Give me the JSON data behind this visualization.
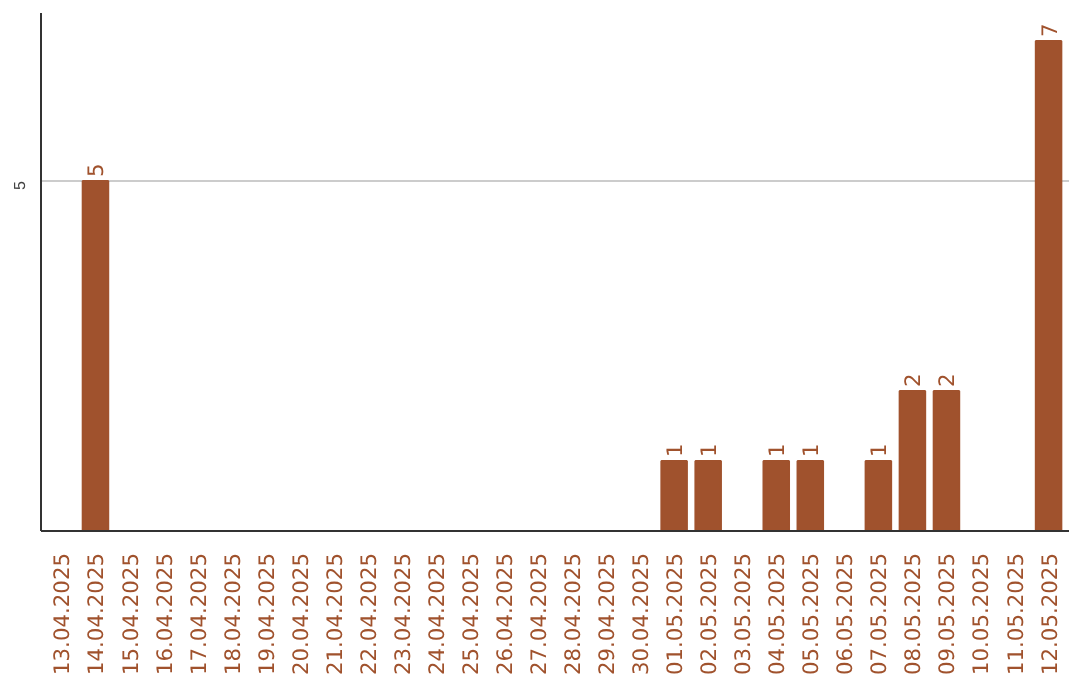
{
  "chart_data": {
    "type": "bar",
    "categories": [
      "13.04.2025",
      "14.04.2025",
      "15.04.2025",
      "16.04.2025",
      "17.04.2025",
      "18.04.2025",
      "19.04.2025",
      "20.04.2025",
      "21.04.2025",
      "22.04.2025",
      "23.04.2025",
      "24.04.2025",
      "25.04.2025",
      "26.04.2025",
      "27.04.2025",
      "28.04.2025",
      "29.04.2025",
      "30.04.2025",
      "01.05.2025",
      "02.05.2025",
      "03.05.2025",
      "04.05.2025",
      "05.05.2025",
      "06.05.2025",
      "07.05.2025",
      "08.05.2025",
      "09.05.2025",
      "10.05.2025",
      "11.05.2025",
      "12.05.2025"
    ],
    "values": [
      0,
      5,
      0,
      0,
      0,
      0,
      0,
      0,
      0,
      0,
      0,
      0,
      0,
      0,
      0,
      0,
      0,
      0,
      1,
      1,
      0,
      1,
      1,
      0,
      1,
      2,
      2,
      0,
      0,
      7
    ],
    "value_labels": [
      null,
      "5",
      null,
      null,
      null,
      null,
      null,
      null,
      null,
      null,
      null,
      null,
      null,
      null,
      null,
      null,
      null,
      null,
      "1",
      "1",
      null,
      "1",
      "1",
      null,
      "1",
      "2",
      "2",
      null,
      null,
      "7"
    ],
    "color": "#a0522d",
    "ylim": [
      0,
      7.4
    ],
    "yticks": [
      5
    ],
    "grid": "y"
  }
}
